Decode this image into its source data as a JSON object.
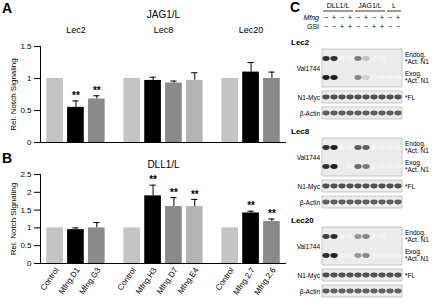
{
  "chart_data": [
    {
      "panel_label": "A",
      "type": "bar",
      "title": "JAG1/L",
      "ylabel": "Rel. Notch Signaling",
      "ylim": [
        0,
        1.5
      ],
      "yticks": [
        0,
        0.5,
        1,
        1.5
      ],
      "groups": [
        {
          "name": "Lec2",
          "categories": [
            null,
            null,
            null
          ],
          "values": [
            1,
            0.55,
            0.68
          ],
          "errors": [
            null,
            0.1,
            0.05
          ],
          "colors": [
            "#c4c4c4",
            "#000000",
            "#8a8a8a"
          ],
          "annotations": [
            null,
            "**",
            "**"
          ]
        },
        {
          "name": "Lec8",
          "categories": [
            null,
            null,
            null,
            null
          ],
          "values": [
            1,
            0.97,
            0.93,
            0.97
          ],
          "errors": [
            null,
            0.05,
            0.03,
            0.12
          ],
          "colors": [
            "#c4c4c4",
            "#000000",
            "#8a8a8a",
            "#b4b4b4"
          ],
          "annotations": [
            null,
            null,
            null,
            null
          ]
        },
        {
          "name": "Lec20",
          "categories": [
            null,
            null,
            null
          ],
          "values": [
            1,
            1.1,
            1.0
          ],
          "errors": [
            null,
            0.15,
            0.1
          ],
          "colors": [
            "#c4c4c4",
            "#000000",
            "#8a8a8a"
          ],
          "annotations": [
            null,
            null,
            null
          ]
        }
      ]
    },
    {
      "panel_label": "B",
      "type": "bar",
      "title": "DLL1/L",
      "ylabel": "Rel. Notch Signaling",
      "ylim": [
        0,
        2.5
      ],
      "yticks": [
        0,
        0.5,
        1,
        1.5,
        2,
        2.5
      ],
      "groups": [
        {
          "categories": [
            "Control",
            "Mfng.D1",
            "Mfng.G3"
          ],
          "values": [
            1,
            0.95,
            1.0
          ],
          "errors": [
            null,
            0.05,
            0.15
          ],
          "colors": [
            "#c4c4c4",
            "#000000",
            "#8a8a8a"
          ],
          "annotations": [
            null,
            null,
            null
          ]
        },
        {
          "categories": [
            "Control",
            "Mfng.H3",
            "Mfng.D7",
            "Mfng.E4"
          ],
          "values": [
            1,
            1.9,
            1.6,
            1.6
          ],
          "errors": [
            null,
            0.3,
            0.25,
            0.2
          ],
          "colors": [
            "#c4c4c4",
            "#000000",
            "#8a8a8a",
            "#b4b4b4"
          ],
          "annotations": [
            null,
            "**",
            "**",
            "**"
          ]
        },
        {
          "categories": [
            "Control",
            "Mfng.2.7",
            "Mfng.2.6"
          ],
          "values": [
            1,
            1.42,
            1.18
          ],
          "errors": [
            null,
            0.05,
            0.07
          ],
          "colors": [
            "#c4c4c4",
            "#000000",
            "#8a8a8a"
          ],
          "annotations": [
            null,
            "**",
            "**"
          ]
        }
      ]
    }
  ],
  "panel_c": {
    "panel_label": "C",
    "condition_labels": [
      "Mfng",
      "GSI"
    ],
    "columns": [
      {
        "label": "DLL1/L",
        "conditions": [
          [
            "−",
            "+",
            "−",
            "+"
          ],
          [
            "−",
            "−",
            "+",
            "+"
          ]
        ]
      },
      {
        "label": "JAG1/L",
        "conditions": [
          [
            "−",
            "+",
            "−",
            "+"
          ],
          [
            "−",
            "−",
            "+",
            "+"
          ]
        ]
      },
      {
        "label": "L",
        "conditions": [
          [
            "−",
            "+"
          ],
          [
            "−",
            "−"
          ]
        ]
      }
    ],
    "blots": [
      {
        "label": "Lec2",
        "rows": [
          {
            "label": "Val1744",
            "bands": [
              {
                "tag": "Endog.",
                "label": "*Act. N1",
                "intensities": [
                  0.85,
                  0.85,
                  0.1,
                  0.1,
                  0.6,
                  0.35,
                  0.1,
                  0.1,
                  0.15,
                  0.15
                ]
              },
              {
                "tag": "Exog.",
                "label": "*Act. N1",
                "intensities": [
                  0.9,
                  0.9,
                  0.15,
                  0.15,
                  0.55,
                  0.3,
                  0.1,
                  0.1,
                  0.1,
                  0.1
                ]
              }
            ]
          },
          {
            "label": "N1-Myc",
            "bands": [
              {
                "label": "*FL",
                "intensities": [
                  0.75,
                  0.75,
                  0.75,
                  0.75,
                  0.75,
                  0.75,
                  0.75,
                  0.75,
                  0.75,
                  0.75
                ]
              }
            ]
          },
          {
            "label": "β-Actin",
            "bands": [
              {
                "intensities": [
                  0.7,
                  0.7,
                  0.7,
                  0.7,
                  0.7,
                  0.7,
                  0.7,
                  0.7,
                  0.7,
                  0.7
                ]
              }
            ]
          }
        ]
      },
      {
        "label": "Lec8",
        "rows": [
          {
            "label": "Val1744",
            "bands": [
              {
                "tag": "Endog.",
                "label": "*Act. N1",
                "intensities": [
                  0.85,
                  0.9,
                  0.1,
                  0.1,
                  0.7,
                  0.7,
                  0.1,
                  0.1,
                  0.1,
                  0.1
                ]
              },
              {
                "tag": "Exog.",
                "label": "*Act. N1",
                "intensities": [
                  0.85,
                  0.9,
                  0.15,
                  0.1,
                  0.65,
                  0.6,
                  0.1,
                  0.1,
                  0.1,
                  0.1
                ]
              }
            ]
          },
          {
            "label": "N1-Myc",
            "bands": [
              {
                "label": "*FL",
                "intensities": [
                  0.75,
                  0.75,
                  0.75,
                  0.75,
                  0.75,
                  0.75,
                  0.75,
                  0.75,
                  0.75,
                  0.75
                ]
              }
            ]
          },
          {
            "label": "β-Actin",
            "bands": [
              {
                "intensities": [
                  0.7,
                  0.7,
                  0.7,
                  0.7,
                  0.7,
                  0.7,
                  0.7,
                  0.7,
                  0.7,
                  0.7
                ]
              }
            ]
          }
        ]
      },
      {
        "label": "Lec20",
        "rows": [
          {
            "label": "Val1744",
            "bands": [
              {
                "tag": "Endog.",
                "label": "*Act. N1",
                "intensities": [
                  0.8,
                  0.85,
                  0.1,
                  0.1,
                  0.5,
                  0.55,
                  0.1,
                  0.1,
                  0.15,
                  0.15
                ]
              },
              {
                "tag": "Exog.",
                "label": "*Act. N1",
                "intensities": [
                  0.85,
                  0.9,
                  0.1,
                  0.1,
                  0.5,
                  0.55,
                  0.1,
                  0.1,
                  0.1,
                  0.1
                ]
              }
            ]
          },
          {
            "label": "N1-Myc",
            "bands": [
              {
                "label": "*FL",
                "intensities": [
                  0.75,
                  0.75,
                  0.75,
                  0.75,
                  0.75,
                  0.75,
                  0.75,
                  0.75,
                  0.75,
                  0.75
                ]
              }
            ]
          },
          {
            "label": "β-Actin",
            "bands": [
              {
                "intensities": [
                  0.7,
                  0.7,
                  0.7,
                  0.7,
                  0.7,
                  0.7,
                  0.7,
                  0.7,
                  0.7,
                  0.7
                ]
              }
            ]
          }
        ]
      }
    ]
  }
}
